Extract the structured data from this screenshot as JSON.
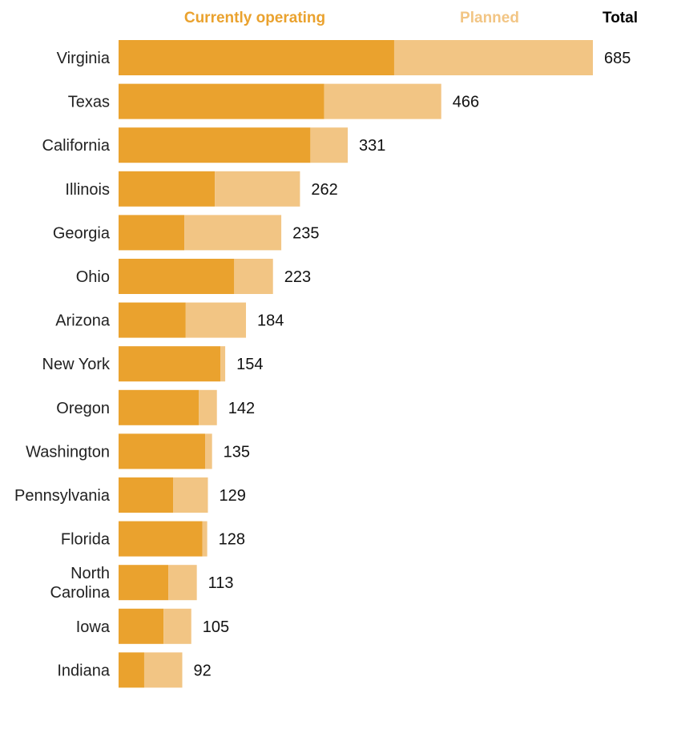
{
  "chart_data": {
    "type": "bar",
    "orientation": "horizontal",
    "stacked": true,
    "legend": {
      "currently_operating": "Currently operating",
      "planned": "Planned",
      "total": "Total"
    },
    "colors": {
      "currently_operating": "#eaa22e",
      "planned": "#f2c584",
      "text": "#222222"
    },
    "categories": [
      {
        "lines": [
          "Virginia"
        ]
      },
      {
        "lines": [
          "Texas"
        ]
      },
      {
        "lines": [
          "California"
        ]
      },
      {
        "lines": [
          "Illinois"
        ]
      },
      {
        "lines": [
          "Georgia"
        ]
      },
      {
        "lines": [
          "Ohio"
        ]
      },
      {
        "lines": [
          "Arizona"
        ]
      },
      {
        "lines": [
          "New York"
        ]
      },
      {
        "lines": [
          "Oregon"
        ]
      },
      {
        "lines": [
          "Washington"
        ]
      },
      {
        "lines": [
          "Pennsylvania"
        ]
      },
      {
        "lines": [
          "Florida"
        ]
      },
      {
        "lines": [
          "North",
          "Carolina"
        ]
      },
      {
        "lines": [
          "Iowa"
        ]
      },
      {
        "lines": [
          "Indiana"
        ]
      }
    ],
    "series": [
      {
        "name": "Currently operating",
        "values": [
          398,
          297,
          277,
          139,
          95,
          167,
          97,
          147,
          116,
          125,
          79,
          121,
          72,
          65,
          37
        ]
      },
      {
        "name": "Planned",
        "values": [
          287,
          169,
          54,
          123,
          140,
          56,
          87,
          7,
          26,
          10,
          50,
          7,
          41,
          40,
          55
        ]
      }
    ],
    "totals": [
      "685",
      "466",
      "331",
      "262",
      "235",
      "223",
      "184",
      "154",
      "142",
      "135",
      "129",
      "128",
      "113",
      "105",
      "92"
    ],
    "xlim": [
      0,
      685
    ],
    "grid": false
  }
}
